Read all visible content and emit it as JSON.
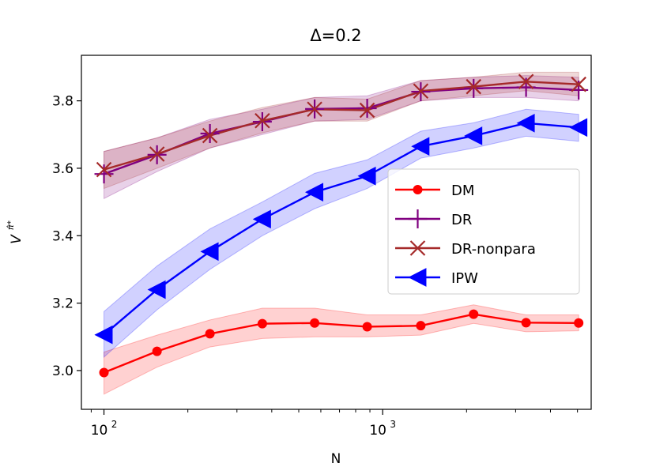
{
  "chart_data": {
    "type": "line",
    "title": "Δ=0.2",
    "xlabel": "N",
    "ylabel": "V",
    "ylabel_sup": "π̂*",
    "xscale": "log",
    "xlim": [
      83,
      5600
    ],
    "ylim": [
      2.885,
      3.935
    ],
    "yticks": [
      3.0,
      3.2,
      3.4,
      3.6,
      3.8
    ],
    "ytick_labels": [
      "3.0",
      "3.2",
      "3.4",
      "3.6",
      "3.8"
    ],
    "xticks": [
      100,
      1000
    ],
    "xtick_bases": [
      "10",
      "10"
    ],
    "xtick_exps": [
      "2",
      "3"
    ],
    "x": [
      100,
      155,
      240,
      370,
      570,
      880,
      1370,
      2120,
      3270,
      5050
    ],
    "legend_position": "center-right",
    "series": [
      {
        "name": "DM",
        "color": "#ff0000",
        "marker": "circle",
        "values": [
          2.994,
          3.057,
          3.109,
          3.139,
          3.141,
          3.13,
          3.133,
          3.167,
          3.142,
          3.141
        ],
        "lower": [
          2.93,
          3.01,
          3.07,
          3.095,
          3.1,
          3.1,
          3.105,
          3.14,
          3.115,
          3.118
        ],
        "upper": [
          3.055,
          3.105,
          3.15,
          3.185,
          3.185,
          3.165,
          3.165,
          3.195,
          3.165,
          3.165
        ]
      },
      {
        "name": "DR",
        "color": "#800080",
        "marker": "plus",
        "values": [
          3.583,
          3.64,
          3.703,
          3.738,
          3.776,
          3.778,
          3.827,
          3.837,
          3.84,
          3.832
        ],
        "lower": [
          3.51,
          3.59,
          3.66,
          3.7,
          3.74,
          3.745,
          3.8,
          3.81,
          3.81,
          3.8
        ],
        "upper": [
          3.65,
          3.69,
          3.745,
          3.775,
          3.81,
          3.815,
          3.86,
          3.87,
          3.875,
          3.87
        ]
      },
      {
        "name": "DR-nonpara",
        "color": "#a52a2a",
        "marker": "x",
        "values": [
          3.596,
          3.642,
          3.697,
          3.741,
          3.775,
          3.772,
          3.829,
          3.842,
          3.857,
          3.849
        ],
        "lower": [
          3.54,
          3.6,
          3.66,
          3.705,
          3.74,
          3.74,
          3.8,
          3.815,
          3.83,
          3.815
        ],
        "upper": [
          3.65,
          3.69,
          3.74,
          3.78,
          3.81,
          3.805,
          3.86,
          3.87,
          3.885,
          3.885
        ]
      },
      {
        "name": "IPW",
        "color": "#0000ff",
        "marker": "triangle-left",
        "values": [
          3.106,
          3.24,
          3.353,
          3.449,
          3.529,
          3.577,
          3.665,
          3.696,
          3.734,
          3.721
        ],
        "lower": [
          3.04,
          3.18,
          3.3,
          3.4,
          3.48,
          3.54,
          3.63,
          3.66,
          3.695,
          3.68
        ],
        "upper": [
          3.175,
          3.31,
          3.42,
          3.5,
          3.585,
          3.625,
          3.71,
          3.735,
          3.775,
          3.76
        ]
      }
    ]
  }
}
